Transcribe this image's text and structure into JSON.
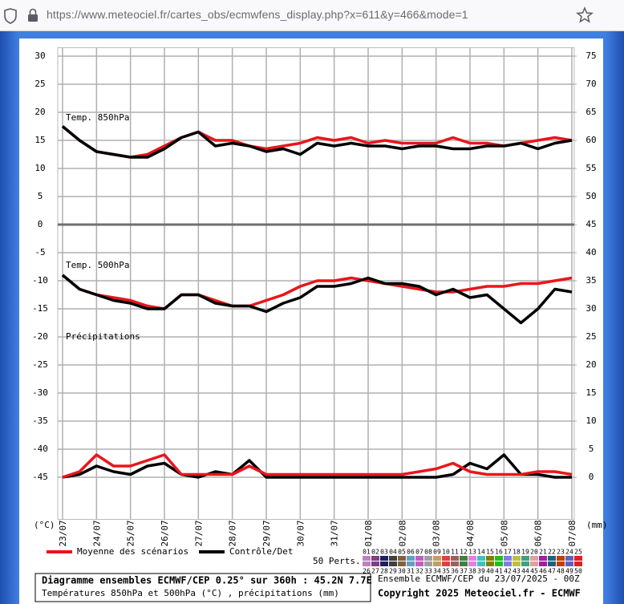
{
  "browser": {
    "url": "https://www.meteociel.fr/cartes_obs/ecmwfens_display.php?x=611&y=466&mode=1"
  },
  "chart_data": {
    "type": "line",
    "y_label": "(°C)",
    "y2_label": "(mm)",
    "annotations": [
      "Temp. 850hPa",
      "Temp. 500hPa",
      "Précipitations"
    ],
    "x": [
      0,
      12,
      24,
      36,
      48,
      60,
      72,
      84,
      96,
      108,
      120,
      132,
      144,
      156,
      168,
      180,
      192,
      204,
      216,
      228,
      240,
      252,
      264,
      276,
      288,
      300,
      312,
      324,
      336,
      348,
      360
    ],
    "xlim": [
      0,
      360
    ],
    "xticks": [
      {
        "value": 0,
        "label": "23/07"
      },
      {
        "value": 24,
        "label": "24/07"
      },
      {
        "value": 48,
        "label": "25/07"
      },
      {
        "value": 72,
        "label": "26/07"
      },
      {
        "value": 96,
        "label": "27/07"
      },
      {
        "value": 120,
        "label": "28/07"
      },
      {
        "value": 144,
        "label": "29/07"
      },
      {
        "value": 168,
        "label": "30/07"
      },
      {
        "value": 192,
        "label": "31/07"
      },
      {
        "value": 216,
        "label": "01/08"
      },
      {
        "value": 240,
        "label": "02/08"
      },
      {
        "value": 264,
        "label": "03/08"
      },
      {
        "value": 288,
        "label": "04/08"
      },
      {
        "value": 312,
        "label": "05/08"
      },
      {
        "value": 336,
        "label": "06/08"
      },
      {
        "value": 360,
        "label": "07/08"
      }
    ],
    "ylim": [
      -52.5,
      31.5
    ],
    "yticks": [
      -45,
      -40,
      -35,
      -30,
      -25,
      -20,
      -15,
      -10,
      -5,
      0,
      5,
      10,
      15,
      20,
      25,
      30
    ],
    "y2lim": [
      -7.5,
      76.5
    ],
    "y2ticks": [
      0,
      5,
      10,
      15,
      20,
      25,
      30,
      35,
      40,
      45,
      50,
      55,
      60,
      65,
      70,
      75
    ],
    "grid": true,
    "legend": [
      {
        "name": "Moyenne des scénarios",
        "color": "#e8161b"
      },
      {
        "name": "Contrôle/Det",
        "color": "#000000"
      }
    ],
    "series": [
      {
        "color": "#e8161b",
        "values": [
          17.5,
          15,
          13,
          12.5,
          12,
          12.5,
          14,
          15.5,
          16.5,
          15,
          15,
          14,
          13.5,
          14,
          14.5,
          15.5,
          15,
          15.5,
          14.5,
          15,
          14.5,
          14.5,
          14.5,
          15.5,
          14.5,
          14.5,
          14,
          14.5,
          15,
          15.5,
          15
        ]
      },
      {
        "color": "#000000",
        "values": [
          17.5,
          15,
          13,
          12.5,
          12,
          12,
          13.5,
          15.5,
          16.5,
          14,
          14.5,
          14,
          13,
          13.5,
          12.5,
          14.5,
          14,
          14.5,
          14,
          14,
          13.5,
          14,
          14,
          13.5,
          13.5,
          14,
          14,
          14.5,
          13.5,
          14.5,
          15
        ]
      },
      {
        "color": "#e8161b",
        "values": [
          -9,
          -11.5,
          -12.5,
          -13,
          -13.5,
          -14.5,
          -15,
          -12.5,
          -12.5,
          -13.5,
          -14.5,
          -14.5,
          -13.5,
          -12.5,
          -11,
          -10,
          -10,
          -9.5,
          -10,
          -10.5,
          -11,
          -11.5,
          -12,
          -12,
          -11.5,
          -11,
          -11,
          -10.5,
          -10.5,
          -10,
          -9.5
        ]
      },
      {
        "color": "#000000",
        "values": [
          -9,
          -11.5,
          -12.5,
          -13.5,
          -14,
          -15,
          -15,
          -12.5,
          -12.5,
          -14,
          -14.5,
          -14.5,
          -15.5,
          -14,
          -13,
          -11,
          -11,
          -10.5,
          -9.5,
          -10.5,
          -10.5,
          -11,
          -12.5,
          -11.5,
          -13,
          -12.5,
          -15,
          -17.5,
          -15,
          -11.5,
          -12
        ]
      },
      {
        "color": "#000000",
        "axis": "y2",
        "values": [
          0,
          0.5,
          2,
          1,
          0.5,
          2,
          2.5,
          0.5,
          0,
          1,
          0.5,
          3,
          0,
          0,
          0,
          0,
          0,
          0,
          0,
          0,
          0,
          0,
          0,
          0.5,
          2.5,
          1.5,
          4,
          0.5,
          0.5,
          0,
          0
        ]
      },
      {
        "color": "#e8161b",
        "axis": "y2",
        "values": [
          0,
          1,
          4,
          2,
          2,
          3,
          4,
          0.5,
          0.5,
          0.5,
          0.5,
          2,
          0.5,
          0.5,
          0.5,
          0.5,
          0.5,
          0.5,
          0.5,
          0.5,
          0.5,
          1,
          1.5,
          2.5,
          1,
          0.5,
          0.5,
          0.5,
          1,
          1,
          0.5
        ]
      }
    ]
  },
  "perturbations": {
    "title": "50 Perts.",
    "labels": [
      "01",
      "02",
      "03",
      "04",
      "05",
      "06",
      "07",
      "08",
      "09",
      "10",
      "11",
      "12",
      "13",
      "14",
      "15",
      "16",
      "17",
      "18",
      "19",
      "20",
      "21",
      "22",
      "23",
      "24",
      "25",
      "26",
      "27",
      "28",
      "29",
      "30",
      "31",
      "32",
      "33",
      "34",
      "35",
      "36",
      "37",
      "38",
      "39",
      "40",
      "41",
      "42",
      "43",
      "44",
      "45",
      "46",
      "47",
      "48",
      "49",
      "50"
    ],
    "colors": [
      "#c080c0",
      "#804080",
      "#202060",
      "#404040",
      "#806040",
      "#60a0c0",
      "#c060c0",
      "#a0a0a0",
      "#c0a060",
      "#e04040",
      "#a06060",
      "#408040",
      "#e080e0",
      "#40c0c0",
      "#808000",
      "#20c020",
      "#8080e0",
      "#c0c040",
      "#40a080",
      "#e0a0a0",
      "#a020a0",
      "#206080",
      "#c04000",
      "#6060c0",
      "#e02020"
    ]
  },
  "footer": {
    "title": "Diagramme ensembles ECMWF/CEP 0.25° sur 360h : 45.2N 7.7E",
    "subtitle": "Températures 850hPa et 500hPa (°C) , précipitations (mm)",
    "run": "Ensemble ECMWF/CEP du 23/07/2025 - 00Z",
    "copyright": "Copyright 2025 Meteociel.fr - ECMWF"
  }
}
